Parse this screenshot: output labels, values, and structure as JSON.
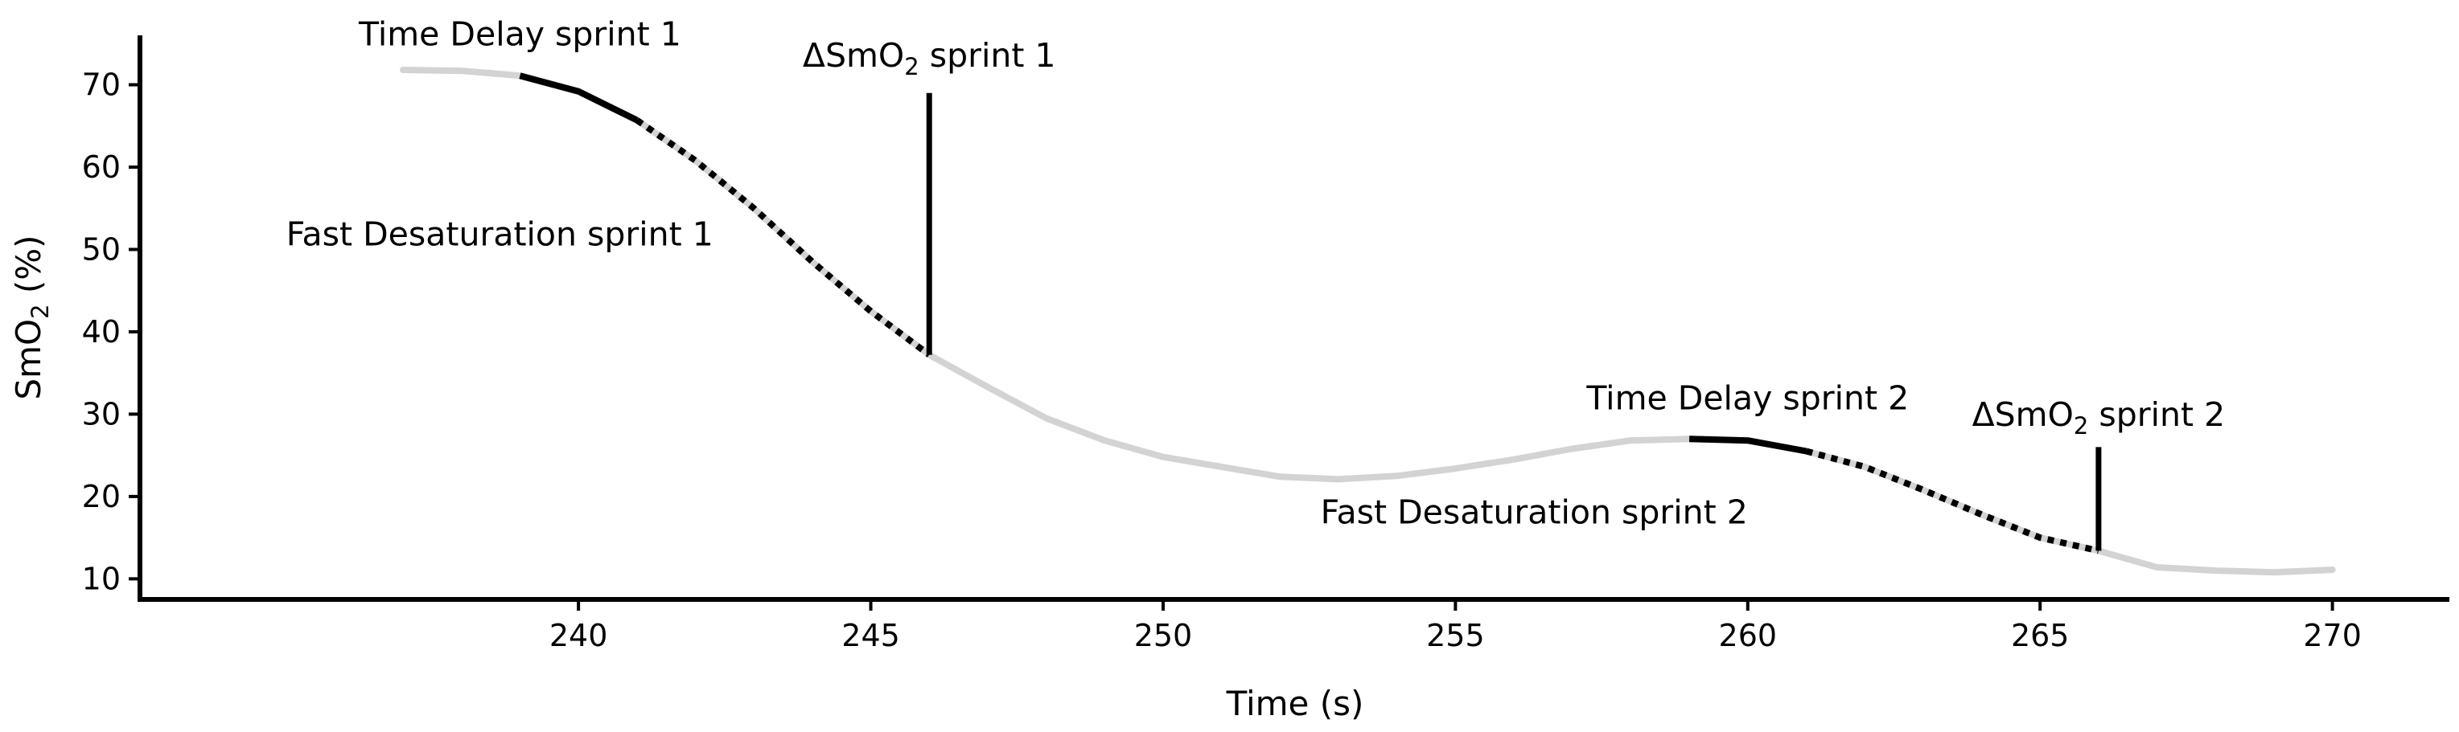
{
  "chart_data": {
    "type": "line",
    "xlabel": "Time (s)",
    "ylabel": {
      "base": "SmO",
      "sub": "2",
      "unit": " (%)"
    },
    "xlim": [
      232.5,
      272
    ],
    "ylim": [
      7.5,
      76
    ],
    "x_ticks": [
      240,
      245,
      250,
      255,
      260,
      265,
      270
    ],
    "y_ticks": [
      10,
      20,
      30,
      40,
      50,
      60,
      70
    ],
    "grid": false,
    "legend": "none",
    "colors": {
      "trace": "#d3d3d3",
      "highlight": "#000000",
      "axis": "#000000"
    },
    "series": [
      {
        "x": [
          237,
          238,
          239,
          240,
          241,
          242,
          243,
          244,
          245,
          246,
          247,
          248,
          249,
          250,
          251,
          252,
          253,
          254,
          255,
          256,
          257,
          258,
          259,
          260,
          261,
          262,
          263,
          264,
          265,
          266,
          267,
          268,
          269,
          270
        ],
        "y": [
          71.8,
          71.7,
          71.1,
          69.2,
          65.7,
          60.8,
          55.0,
          48.5,
          42.5,
          37.2,
          33.3,
          29.5,
          26.8,
          24.8,
          23.6,
          22.4,
          22.1,
          22.5,
          23.4,
          24.5,
          25.8,
          26.8,
          27.0,
          26.8,
          25.5,
          23.6,
          20.8,
          17.8,
          15.0,
          13.4,
          11.4,
          11.0,
          10.8,
          11.1
        ]
      }
    ],
    "segments": [
      {
        "kind": "solid",
        "x_from": 239,
        "x_to": 241
      },
      {
        "kind": "dotted",
        "x_from": 241,
        "x_to": 246
      },
      {
        "kind": "solid",
        "x_from": 259,
        "x_to": 261
      },
      {
        "kind": "dotted",
        "x_from": 261,
        "x_to": 266
      }
    ],
    "vlines": [
      {
        "x": 246,
        "y_from": 37.2,
        "y_to": 69
      },
      {
        "x": 266,
        "y_from": 13.4,
        "y_to": 26
      }
    ],
    "annotations": [
      {
        "text": "Time Delay sprint 1",
        "x": 239,
        "y": 74.8,
        "anchor": "middle"
      },
      {
        "delta": "ΔSmO",
        "sub": "2",
        "rest": " sprint 1",
        "x": 246,
        "y": 72.2,
        "anchor": "middle"
      },
      {
        "text": "Fast Desaturation sprint 1",
        "x": 235,
        "y": 50.5,
        "anchor": "start"
      },
      {
        "text": "Time Delay sprint 2",
        "x": 260,
        "y": 30.6,
        "anchor": "middle"
      },
      {
        "delta": "ΔSmO",
        "sub": "2",
        "rest": " sprint 2",
        "x": 266,
        "y": 28.6,
        "anchor": "middle"
      },
      {
        "text": "Fast Desaturation sprint 2",
        "x": 260,
        "y": 16.7,
        "anchor": "end"
      }
    ]
  }
}
